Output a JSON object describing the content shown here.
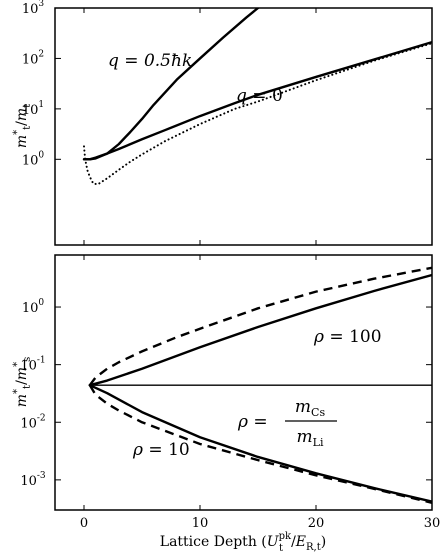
{
  "chart_data": [
    {
      "type": "line",
      "ylabel": "m*t/mt",
      "yscale": "log",
      "xlim": [
        -2.5,
        30
      ],
      "ylim": [
        0.02,
        1000
      ],
      "x_ticks": [
        0,
        10,
        20,
        30
      ],
      "y_ticks": [
        {
          "value": 1,
          "label": "10",
          "exp": "0"
        },
        {
          "value": 10,
          "label": "10",
          "exp": "1"
        },
        {
          "value": 100,
          "label": "10",
          "exp": "2"
        },
        {
          "value": 1000,
          "label": "10",
          "exp": "3"
        }
      ],
      "series": [
        {
          "label_key": "q_half",
          "style": "solid",
          "x": [
            0,
            0.5,
            1,
            2,
            3,
            4,
            5,
            6,
            8,
            10,
            12,
            14,
            15
          ],
          "y": [
            1.0,
            1.0,
            1.04,
            1.3,
            2.0,
            3.5,
            6.3,
            12,
            38,
            100,
            260,
            650,
            1000
          ]
        },
        {
          "label_key": "q_zero",
          "style": "solid",
          "x": [
            0,
            0.5,
            1,
            2,
            3,
            4,
            5,
            7,
            10,
            13,
            15,
            20,
            25,
            30
          ],
          "y": [
            1.0,
            1.0,
            1.08,
            1.3,
            1.6,
            2.0,
            2.5,
            3.8,
            7.2,
            13,
            19,
            43,
            95,
            210
          ]
        },
        {
          "style": "dotted",
          "x": [
            0,
            0.1,
            0.3,
            0.5,
            0.8,
            1.2,
            2,
            3,
            4,
            5,
            7,
            10,
            13,
            15,
            20,
            25,
            30
          ],
          "y": [
            1.8,
            1.0,
            0.6,
            0.45,
            0.33,
            0.32,
            0.42,
            0.62,
            0.9,
            1.25,
            2.3,
            5.0,
            10,
            14,
            37,
            90,
            200
          ]
        }
      ],
      "annotations": {
        "q_half": {
          "lhs": "q",
          "rhs": "0.5ħk"
        },
        "q_zero": {
          "lhs": "q",
          "rhs": "0"
        }
      }
    },
    {
      "type": "line",
      "ylabel": "m*t/m*s",
      "xlabel": "Lattice Depth (Upkt/ER,t)",
      "yscale": "log",
      "xlim": [
        -2.5,
        30
      ],
      "ylim": [
        0.0003,
        8
      ],
      "x_ticks": [
        0,
        10,
        20,
        30
      ],
      "y_ticks": [
        {
          "value": 0.001,
          "label": "10",
          "exp": "-3"
        },
        {
          "value": 0.01,
          "label": "10",
          "exp": "-2"
        },
        {
          "value": 0.1,
          "label": "10",
          "exp": "-1"
        },
        {
          "value": 1,
          "label": "10",
          "exp": "0"
        }
      ],
      "series": [
        {
          "label_key": "rho_100",
          "style": "solid",
          "x": [
            0.5,
            2,
            5,
            10,
            15,
            20,
            25,
            30
          ],
          "y": [
            0.044,
            0.053,
            0.085,
            0.2,
            0.45,
            0.95,
            1.9,
            3.6
          ]
        },
        {
          "label_key": "rho_100",
          "style": "dashed",
          "x": [
            0.5,
            1,
            2,
            3,
            5,
            8,
            10,
            15,
            20,
            25,
            30
          ],
          "y": [
            0.044,
            0.06,
            0.085,
            0.11,
            0.17,
            0.3,
            0.42,
            0.95,
            1.85,
            3.1,
            4.8
          ]
        },
        {
          "label_key": "rho_ratio",
          "style": "solid",
          "x": [
            0.5,
            30
          ],
          "y": [
            0.044,
            0.044
          ]
        },
        {
          "label_key": "rho_10",
          "style": "solid",
          "x": [
            0.5,
            2,
            5,
            10,
            15,
            20,
            25,
            30
          ],
          "y": [
            0.044,
            0.032,
            0.015,
            0.0055,
            0.0025,
            0.0013,
            0.00072,
            0.00042
          ]
        },
        {
          "label_key": "rho_10",
          "style": "dashed",
          "x": [
            0.5,
            1,
            2,
            3,
            5,
            10,
            15,
            20,
            25,
            30
          ],
          "y": [
            0.044,
            0.03,
            0.021,
            0.016,
            0.01,
            0.0042,
            0.0022,
            0.0012,
            0.0007,
            0.0004
          ]
        }
      ],
      "annotations": {
        "rho_100": {
          "lhs": "ρ",
          "rhs": "100"
        },
        "rho_ratio": {
          "lhs": "ρ",
          "num": "m",
          "num_sub": "Cs",
          "den": "m",
          "den_sub": "Li"
        },
        "rho_10": {
          "lhs": "ρ",
          "rhs": "10"
        }
      }
    }
  ]
}
